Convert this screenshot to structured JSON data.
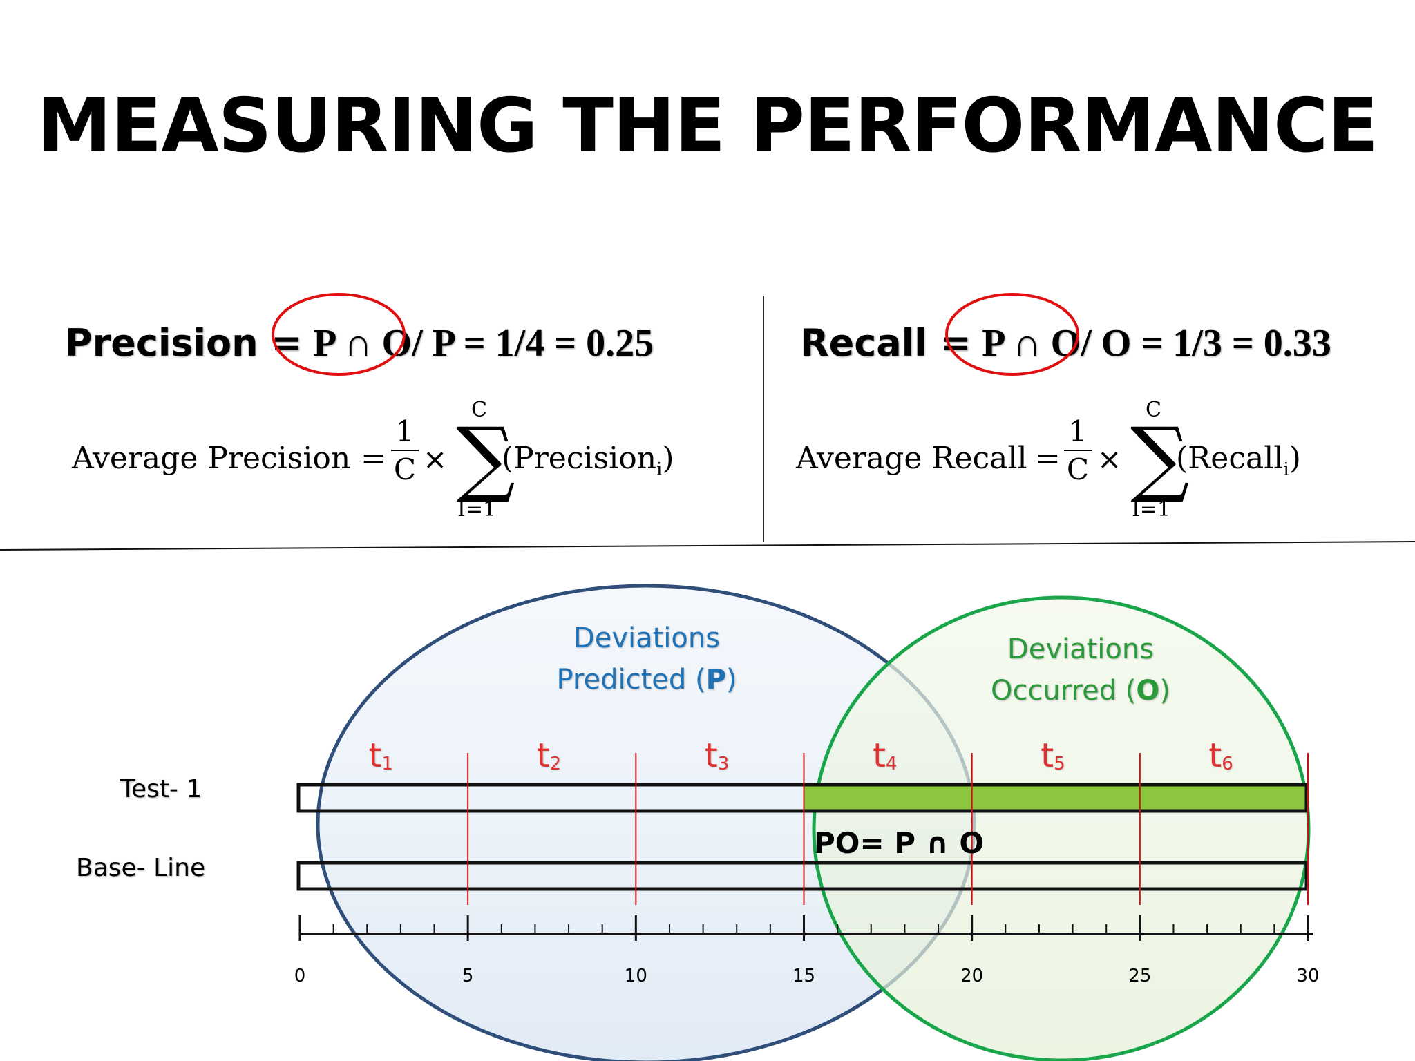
{
  "title": "MEASURING THE PERFORMANCE",
  "precision": {
    "label": "Precision =",
    "expr": "P ∩ O",
    "rest": "/ P  = 1/4 = 0.25",
    "avg_label": "Average Precision",
    "term": "Precision",
    "sub": "i"
  },
  "recall": {
    "label": "Recall =",
    "expr": "P ∩ O",
    "rest": "/ O = 1/3 = 0.33",
    "avg_label": "Average Recall",
    "term": "Recall",
    "sub": "i"
  },
  "formula_parts": {
    "eq": "=",
    "numerator": "1",
    "denominator": "C",
    "times": "×",
    "sigma": "∑",
    "sigma_upper": "C",
    "sigma_lower": "I=1",
    "open_paren": "(",
    "close_paren": ")"
  },
  "venn": {
    "predicted_line1": "Deviations",
    "predicted_line2": "Predicted (",
    "predicted_letter": "P",
    "predicted_close": ")",
    "occurred_line1": "Deviations",
    "occurred_line2": "Occurred (",
    "occurred_letter": "O",
    "occurred_close": ")",
    "intersection_label": "PO= P ∩ O"
  },
  "rows": {
    "test": "Test- 1",
    "baseline": "Base- Line"
  },
  "time_labels": [
    {
      "t": "t",
      "sub": "1"
    },
    {
      "t": "t",
      "sub": "2"
    },
    {
      "t": "t",
      "sub": "3"
    },
    {
      "t": "t",
      "sub": "4"
    },
    {
      "t": "t",
      "sub": "5"
    },
    {
      "t": "t",
      "sub": "6"
    }
  ],
  "axis": {
    "min": 0,
    "max": 30,
    "tick_labels": [
      "0",
      "5",
      "10",
      "15",
      "20",
      "25",
      "30"
    ],
    "highlight_range": [
      15,
      30
    ]
  },
  "colors": {
    "circle_p": "#2f4f7a",
    "circle_o": "#19a64a",
    "label_p": "#1e73b8",
    "label_o": "#2a9a3a",
    "highlight": "#8cc63f",
    "time_label": "#e03030",
    "guide_line": "#cc1111",
    "circle_mark": "#e01010"
  }
}
